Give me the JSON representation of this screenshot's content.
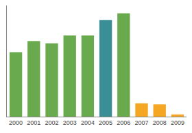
{
  "chart_data": {
    "type": "bar",
    "categories": [
      "2000",
      "2001",
      "2002",
      "2003",
      "2004",
      "2005",
      "2006",
      "2007",
      "2008",
      "2009"
    ],
    "values": [
      58,
      68,
      66,
      73,
      73,
      87,
      93,
      12,
      11,
      2
    ],
    "colors": [
      "#6aaa4f",
      "#6aaa4f",
      "#6aaa4f",
      "#6aaa4f",
      "#6aaa4f",
      "#3a8f96",
      "#6aaa4f",
      "#f5a623",
      "#f5a623",
      "#f5a623"
    ],
    "ylim": [
      0,
      100
    ],
    "yticks": [],
    "grid": false,
    "tick_labels": "x"
  }
}
